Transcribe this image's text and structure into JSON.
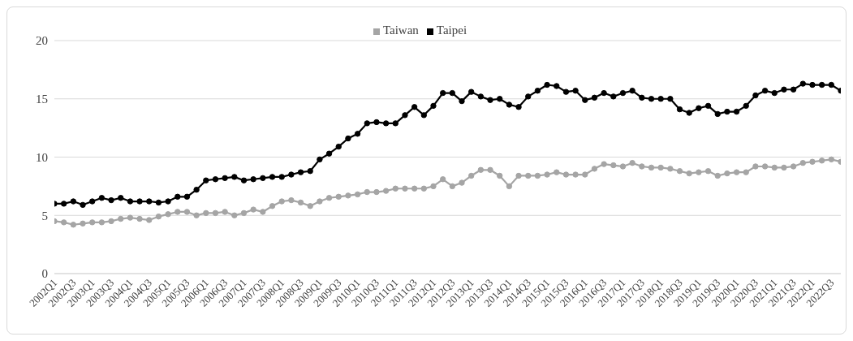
{
  "chart_data": {
    "type": "line",
    "categories": [
      "2002Q1",
      null,
      "2002Q3",
      null,
      "2003Q1",
      null,
      "2003Q3",
      null,
      "2004Q1",
      null,
      "2004Q3",
      null,
      "2005Q1",
      null,
      "2005Q3",
      null,
      "2006Q1",
      null,
      "2006Q3",
      null,
      "2007Q1",
      null,
      "2007Q3",
      null,
      "2008Q1",
      null,
      "2008Q3",
      null,
      "2009Q1",
      null,
      "2009Q3",
      null,
      "2010Q1",
      null,
      "2010Q3",
      null,
      "2011Q1",
      null,
      "2011Q3",
      null,
      "2012Q1",
      null,
      "2012Q3",
      null,
      "2013Q1",
      null,
      "2013Q3",
      null,
      "2014Q1",
      null,
      "2014Q3",
      null,
      "2015Q1",
      null,
      "2015Q3",
      null,
      "2016Q1",
      null,
      "2016Q3",
      null,
      "2017Q1",
      null,
      "2017Q3",
      null,
      "2018Q1",
      null,
      "2018Q3",
      null,
      "2019Q1",
      null,
      "2019Q3",
      null,
      "2020Q1",
      null,
      "2020Q3",
      null,
      "2021Q1",
      null,
      "2021Q3",
      null,
      "2022Q1",
      null,
      "2022Q3",
      null
    ],
    "series": [
      {
        "name": "Taiwan",
        "color": "#a5a5a5",
        "values": [
          4.5,
          4.4,
          4.2,
          4.3,
          4.4,
          4.4,
          4.5,
          4.7,
          4.8,
          4.7,
          4.6,
          4.9,
          5.1,
          5.3,
          5.3,
          5.0,
          5.2,
          5.2,
          5.3,
          5.0,
          5.2,
          5.5,
          5.3,
          5.8,
          6.2,
          6.3,
          6.1,
          5.8,
          6.2,
          6.5,
          6.6,
          6.7,
          6.8,
          7.0,
          7.0,
          7.1,
          7.3,
          7.3,
          7.3,
          7.3,
          7.5,
          8.1,
          7.5,
          7.8,
          8.4,
          8.9,
          8.9,
          8.4,
          7.5,
          8.4,
          8.4,
          8.4,
          8.5,
          8.7,
          8.5,
          8.5,
          8.5,
          9.0,
          9.4,
          9.3,
          9.2,
          9.5,
          9.2,
          9.1,
          9.1,
          9.0,
          8.8,
          8.6,
          8.7,
          8.8,
          8.4,
          8.6,
          8.7,
          8.7,
          9.2,
          9.2,
          9.1,
          9.1,
          9.2,
          9.5,
          9.6,
          9.7,
          9.8,
          9.6
        ]
      },
      {
        "name": "Taipei",
        "color": "#000000",
        "values": [
          6.0,
          6.0,
          6.2,
          5.9,
          6.2,
          6.5,
          6.3,
          6.5,
          6.2,
          6.2,
          6.2,
          6.1,
          6.2,
          6.6,
          6.6,
          7.2,
          8.0,
          8.1,
          8.2,
          8.3,
          8.0,
          8.1,
          8.2,
          8.3,
          8.3,
          8.5,
          8.7,
          8.8,
          9.8,
          10.3,
          10.9,
          11.6,
          12.0,
          12.9,
          13.0,
          12.9,
          12.9,
          13.6,
          14.3,
          13.6,
          14.4,
          15.5,
          15.5,
          14.8,
          15.6,
          15.2,
          14.9,
          15.0,
          14.5,
          14.3,
          15.2,
          15.7,
          16.2,
          16.1,
          15.6,
          15.7,
          14.9,
          15.1,
          15.5,
          15.2,
          15.5,
          15.7,
          15.1,
          15.0,
          15.0,
          15.0,
          14.1,
          13.8,
          14.2,
          14.4,
          13.7,
          13.9,
          13.9,
          14.4,
          15.3,
          15.7,
          15.5,
          15.8,
          15.8,
          16.3,
          16.2,
          16.2,
          16.2,
          15.7
        ]
      }
    ],
    "ylim": [
      0,
      20
    ],
    "yticks": [
      0,
      5,
      10,
      15,
      20
    ],
    "grid": "y",
    "legend": "top",
    "marker": "circle",
    "line_style": "solid"
  }
}
